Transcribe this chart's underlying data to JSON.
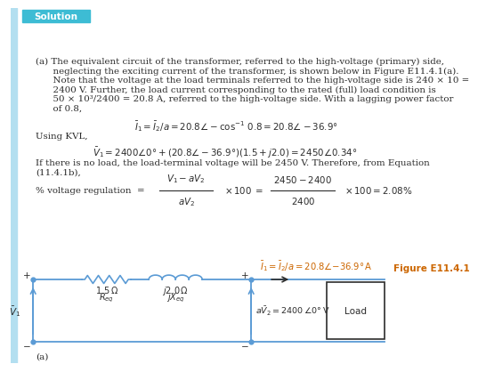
{
  "bg_color": "#ffffff",
  "left_bar_color": "#b3dff0",
  "solution_bg_color": "#3dbcd4",
  "solution_text": "Solution",
  "solution_text_color": "#ffffff",
  "body_text_color": "#2c2c2c",
  "circuit_color": "#5b9bd5",
  "orange_color": "#cc6600",
  "fig_label": "Figure E11.4.1",
  "footnote_a": "(a)"
}
